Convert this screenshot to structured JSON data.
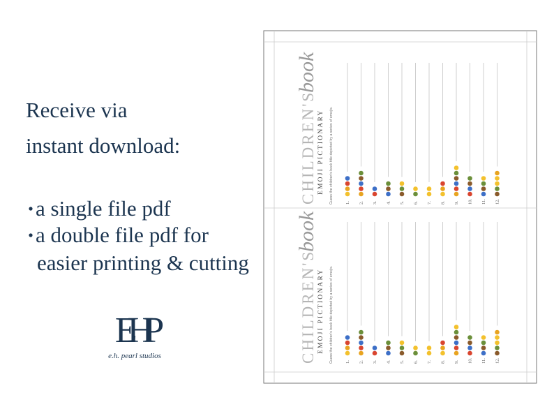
{
  "heading": [
    "Receive via",
    "instant download:"
  ],
  "bullets": [
    [
      "a single file pdf"
    ],
    [
      "a double file pdf for",
      "easier printing & cutting"
    ]
  ],
  "logo": {
    "mark": "EHP",
    "name": "e.h. pearl studios"
  },
  "sheet": {
    "title": "CHILDREN'S",
    "title_script": "book",
    "subtitle": "EMOJI PICTIONARY",
    "instructions": "Guess the children's book title depicted by a series of emojis.",
    "items": [
      "1.",
      "2.",
      "3.",
      "4.",
      "5.",
      "6.",
      "7.",
      "8.",
      "9.",
      "10.",
      "11.",
      "12."
    ]
  }
}
